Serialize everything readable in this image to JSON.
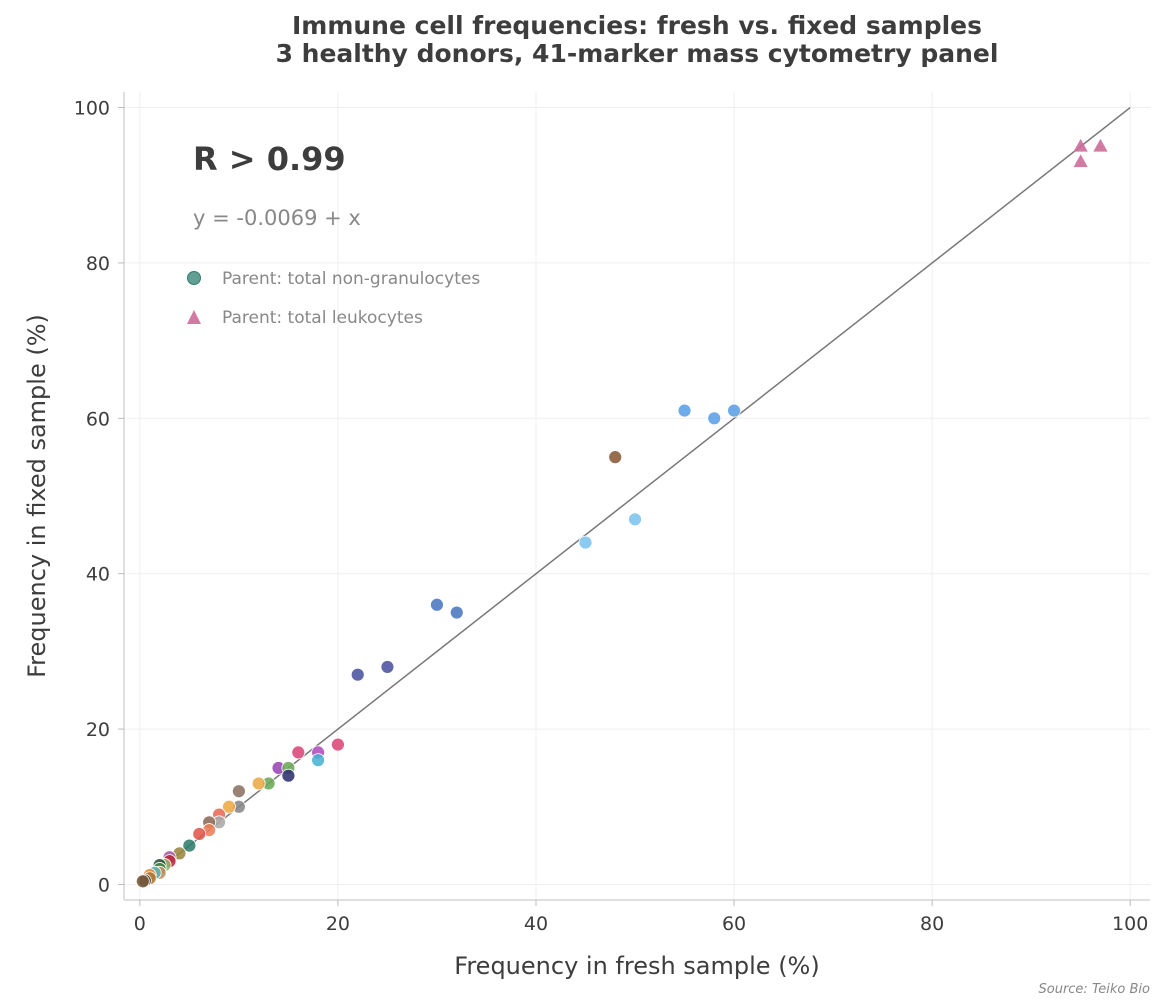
{
  "chart_data": {
    "type": "scatter",
    "title": [
      "Immune cell frequencies: fresh vs. fixed samples",
      "3 healthy donors, 41-marker mass cytometry panel"
    ],
    "xlabel": "Frequency in fresh sample (%)",
    "ylabel": "Frequency in fixed sample (%)",
    "xlim": [
      -1.6,
      102
    ],
    "ylim": [
      -2,
      102
    ],
    "xticks": [
      0,
      20,
      40,
      60,
      80,
      100
    ],
    "yticks": [
      0,
      20,
      40,
      60,
      80,
      100
    ],
    "grid": true,
    "fit_line": {
      "intercept": -0.0069,
      "slope": 1,
      "color": "#777777"
    },
    "annotations": {
      "r_text": "R > 0.99",
      "equation": "y = -0.0069 + x"
    },
    "legend": {
      "placement": "upper-left",
      "entries": [
        {
          "label": "Parent: total non-granulocytes",
          "marker": "circle",
          "color": "#2f7d6d"
        },
        {
          "label": "Parent: total leukocytes",
          "marker": "triangle",
          "color": "#cc6d9a"
        }
      ]
    },
    "source": "Source: Teiko Bio",
    "series": [
      {
        "name": "Parent: total non-granulocytes",
        "marker": "circle",
        "points": [
          {
            "x": 60,
            "y": 61,
            "color": "#5b9ee6"
          },
          {
            "x": 58,
            "y": 60,
            "color": "#5b9ee6"
          },
          {
            "x": 55,
            "y": 61,
            "color": "#5b9ee6"
          },
          {
            "x": 48,
            "y": 55,
            "color": "#8b5a36"
          },
          {
            "x": 50,
            "y": 47,
            "color": "#7cc4ef"
          },
          {
            "x": 45,
            "y": 44,
            "color": "#7cc4ef"
          },
          {
            "x": 30,
            "y": 36,
            "color": "#4a78bf"
          },
          {
            "x": 32,
            "y": 35,
            "color": "#4a78bf"
          },
          {
            "x": 25,
            "y": 28,
            "color": "#4b529e"
          },
          {
            "x": 22,
            "y": 27,
            "color": "#4b529e"
          },
          {
            "x": 20,
            "y": 18,
            "color": "#d94876"
          },
          {
            "x": 16,
            "y": 17,
            "color": "#d94876"
          },
          {
            "x": 18,
            "y": 17,
            "color": "#b04bbd"
          },
          {
            "x": 18,
            "y": 16,
            "color": "#47b3d1"
          },
          {
            "x": 14,
            "y": 15,
            "color": "#9a44b5"
          },
          {
            "x": 15,
            "y": 15,
            "color": "#6aaa5a"
          },
          {
            "x": 15,
            "y": 14,
            "color": "#2e3070"
          },
          {
            "x": 13,
            "y": 13,
            "color": "#6aaa5a"
          },
          {
            "x": 12,
            "y": 13,
            "color": "#eda845"
          },
          {
            "x": 10,
            "y": 12,
            "color": "#8a7262"
          },
          {
            "x": 10,
            "y": 10,
            "color": "#888888"
          },
          {
            "x": 9,
            "y": 10,
            "color": "#eda845"
          },
          {
            "x": 8,
            "y": 9,
            "color": "#e86a55"
          },
          {
            "x": 8,
            "y": 8,
            "color": "#aaaaaa"
          },
          {
            "x": 7,
            "y": 8,
            "color": "#8a6b59"
          },
          {
            "x": 7,
            "y": 7,
            "color": "#ed7e56"
          },
          {
            "x": 6,
            "y": 6.5,
            "color": "#e0564a"
          },
          {
            "x": 5,
            "y": 5,
            "color": "#2f7d6d"
          },
          {
            "x": 4,
            "y": 4,
            "color": "#9a8640"
          },
          {
            "x": 3,
            "y": 3.5,
            "color": "#a05aa8"
          },
          {
            "x": 3,
            "y": 3,
            "color": "#c02a3a"
          },
          {
            "x": 2.5,
            "y": 2.5,
            "color": "#8fb36a"
          },
          {
            "x": 2,
            "y": 2.5,
            "color": "#2a4d3a"
          },
          {
            "x": 2,
            "y": 2,
            "color": "#4a8a4a"
          },
          {
            "x": 2,
            "y": 1.5,
            "color": "#c09060"
          },
          {
            "x": 1.5,
            "y": 1.5,
            "color": "#60b0b0"
          },
          {
            "x": 1,
            "y": 1.2,
            "color": "#ee8833"
          },
          {
            "x": 1,
            "y": 0.8,
            "color": "#aa7733"
          },
          {
            "x": 0.5,
            "y": 0.5,
            "color": "#444444"
          },
          {
            "x": 0.3,
            "y": 0.4,
            "color": "#7a5a3a"
          }
        ]
      },
      {
        "name": "Parent: total leukocytes",
        "marker": "triangle",
        "points": [
          {
            "x": 95,
            "y": 95,
            "color": "#cc6d9a"
          },
          {
            "x": 97,
            "y": 95,
            "color": "#cc6d9a"
          },
          {
            "x": 95,
            "y": 93,
            "color": "#cc6d9a"
          }
        ]
      }
    ]
  }
}
